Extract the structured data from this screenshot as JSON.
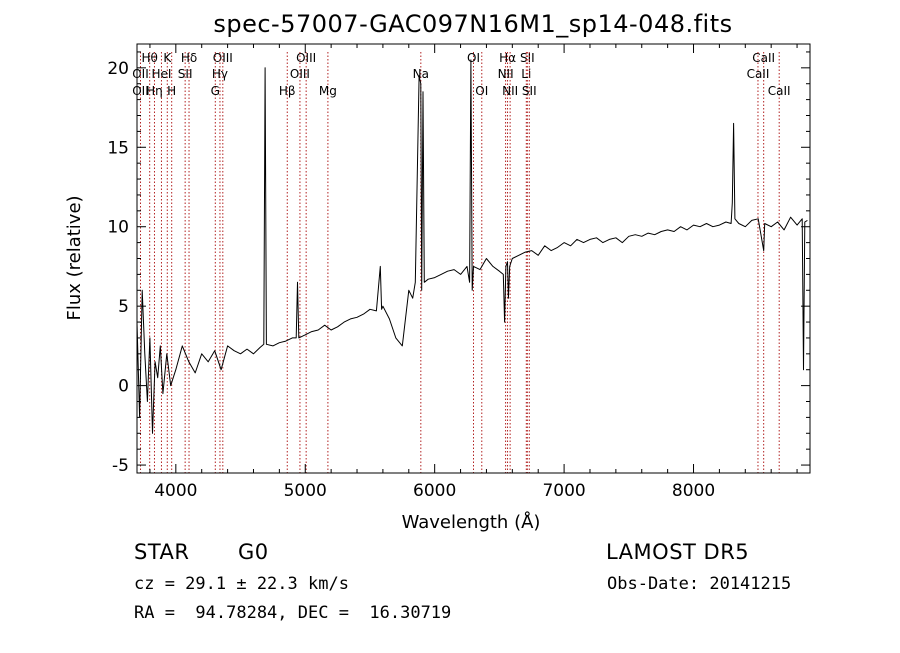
{
  "chart_data": {
    "type": "line",
    "title": "spec-57007-GAC097N16M1_sp14-048.fits",
    "xlabel": "Wavelength (Å)",
    "ylabel": "Flux (relative)",
    "xlim": [
      3700,
      8900
    ],
    "ylim": [
      -5.5,
      21.5
    ],
    "xticks": [
      4000,
      5000,
      6000,
      7000,
      8000
    ],
    "yticks": [
      -5,
      0,
      5,
      10,
      15,
      20
    ],
    "grid": false,
    "series": [
      {
        "x": [
          3700,
          3720,
          3740,
          3760,
          3780,
          3800,
          3820,
          3840,
          3860,
          3880,
          3900,
          3930,
          3960,
          4000,
          4050,
          4100,
          4150,
          4200,
          4250,
          4300,
          4350,
          4400,
          4450,
          4500,
          4550,
          4600,
          4650,
          4680,
          4690,
          4700,
          4750,
          4800,
          4850,
          4900,
          4930,
          4940,
          4950,
          5000,
          5050,
          5100,
          5150,
          5200,
          5250,
          5300,
          5350,
          5400,
          5450,
          5500,
          5550,
          5580,
          5590,
          5600,
          5650,
          5700,
          5750,
          5800,
          5830,
          5850,
          5880,
          5893,
          5900,
          5910,
          5920,
          5950,
          6000,
          6050,
          6100,
          6150,
          6200,
          6250,
          6270,
          6280,
          6290,
          6300,
          6350,
          6400,
          6450,
          6500,
          6530,
          6540,
          6550,
          6563,
          6570,
          6580,
          6600,
          6650,
          6700,
          6750,
          6800,
          6850,
          6900,
          6950,
          7000,
          7050,
          7100,
          7150,
          7200,
          7250,
          7300,
          7350,
          7400,
          7450,
          7500,
          7550,
          7600,
          7650,
          7700,
          7750,
          7800,
          7850,
          7900,
          7950,
          8000,
          8050,
          8100,
          8150,
          8200,
          8250,
          8290,
          8300,
          8310,
          8320,
          8350,
          8400,
          8450,
          8500,
          8542,
          8550,
          8600,
          8650,
          8700,
          8750,
          8800,
          8840,
          8850,
          8860,
          8880
        ],
        "y": [
          4.0,
          -2.0,
          6.0,
          2.0,
          -1.0,
          3.0,
          -3.0,
          1.5,
          0.5,
          2.5,
          -0.5,
          2.0,
          0.0,
          1.0,
          2.5,
          1.5,
          0.8,
          2.0,
          1.5,
          2.2,
          1.0,
          2.5,
          2.2,
          2.0,
          2.3,
          2.0,
          2.4,
          2.6,
          20.0,
          2.6,
          2.5,
          2.7,
          2.8,
          3.0,
          3.0,
          6.5,
          3.0,
          3.2,
          3.4,
          3.5,
          3.8,
          3.5,
          3.7,
          4.0,
          4.2,
          4.3,
          4.5,
          4.8,
          4.7,
          7.5,
          4.8,
          5.0,
          4.2,
          3.0,
          2.5,
          6.0,
          5.5,
          6.5,
          19.5,
          19.0,
          6.0,
          18.5,
          6.5,
          6.7,
          6.8,
          7.0,
          7.2,
          7.3,
          7.0,
          7.5,
          6.5,
          20.5,
          6.0,
          7.5,
          7.3,
          8.0,
          7.5,
          7.2,
          7.0,
          4.0,
          7.5,
          7.8,
          5.5,
          7.5,
          8.0,
          8.2,
          8.4,
          8.5,
          8.2,
          8.8,
          8.5,
          8.7,
          9.0,
          8.8,
          9.2,
          9.0,
          9.2,
          9.3,
          9.0,
          9.2,
          9.3,
          9.0,
          9.4,
          9.5,
          9.4,
          9.6,
          9.5,
          9.7,
          9.8,
          9.7,
          10.0,
          9.8,
          10.1,
          10.0,
          10.2,
          10.0,
          10.1,
          10.3,
          10.2,
          11.5,
          16.5,
          10.5,
          10.2,
          10.0,
          10.4,
          10.5,
          8.5,
          10.2,
          10.0,
          10.3,
          9.8,
          10.6,
          10.1,
          10.5,
          1.0,
          10.3,
          10.4
        ]
      }
    ],
    "line_markers": [
      {
        "label": "Hθ",
        "x": 3798,
        "row": 0
      },
      {
        "label": "K",
        "x": 3934,
        "row": 0
      },
      {
        "label": "Hδ",
        "x": 4102,
        "row": 0
      },
      {
        "label": "OII",
        "x": 3727,
        "row": 1
      },
      {
        "label": "HeI",
        "x": 3889,
        "row": 1
      },
      {
        "label": "SII",
        "x": 4072,
        "row": 1
      },
      {
        "label": "OII",
        "x": 3727,
        "row": 2
      },
      {
        "label": "Hη",
        "x": 3835,
        "row": 2
      },
      {
        "label": "H",
        "x": 3968,
        "row": 2
      },
      {
        "label": "OIII",
        "x": 4363,
        "row": 0
      },
      {
        "label": "Hγ",
        "x": 4341,
        "row": 1
      },
      {
        "label": "G",
        "x": 4305,
        "row": 2
      },
      {
        "label": "OIII",
        "x": 5007,
        "row": 0
      },
      {
        "label": "OIII",
        "x": 4959,
        "row": 1
      },
      {
        "label": "Hβ",
        "x": 4861,
        "row": 2
      },
      {
        "label": "Mg",
        "x": 5175,
        "row": 2
      },
      {
        "label": "Na",
        "x": 5893,
        "row": 1
      },
      {
        "label": "OI",
        "x": 6300,
        "row": 0
      },
      {
        "label": "OI",
        "x": 6364,
        "row": 2
      },
      {
        "label": "Hα",
        "x": 6563,
        "row": 0
      },
      {
        "label": "SII",
        "x": 6716,
        "row": 0
      },
      {
        "label": "NII",
        "x": 6548,
        "row": 1
      },
      {
        "label": "Li",
        "x": 6708,
        "row": 1
      },
      {
        "label": "NII",
        "x": 6583,
        "row": 2
      },
      {
        "label": "SII",
        "x": 6731,
        "row": 2
      },
      {
        "label": "CaII",
        "x": 8542,
        "row": 0
      },
      {
        "label": "CaII",
        "x": 8498,
        "row": 1
      },
      {
        "label": "CaII",
        "x": 8662,
        "row": 2
      }
    ]
  },
  "info": {
    "object_class": "STAR",
    "subclass": "G0",
    "survey": "LAMOST DR5",
    "redshift_text": "cz = 29.1 ± 22.3 km/s",
    "obs_date": "Obs-Date: 20141215",
    "coordinates": "RA =  94.78284, DEC =  16.30719"
  },
  "colors": {
    "line": "#000000",
    "marker": "#b22222",
    "axes": "#000000"
  }
}
